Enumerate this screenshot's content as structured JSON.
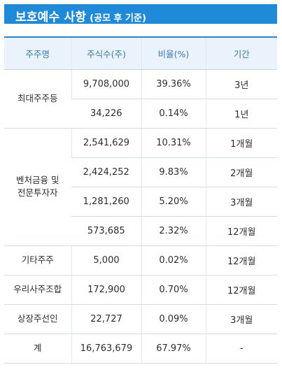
{
  "title": {
    "main": "보호예수 사항",
    "sub": "(공모 후 기준)"
  },
  "headers": [
    "주주명",
    "주식수(주)",
    "비율(%)",
    "기간"
  ],
  "groups": [
    {
      "name": "최대주주등",
      "rows": [
        {
          "shares": "9,708,000",
          "ratio": "39.36%",
          "period": "3년"
        },
        {
          "shares": "34,226",
          "ratio": "0.14%",
          "period": "1년"
        }
      ]
    },
    {
      "name_lines": [
        "벤처금융 및",
        "전문투자자"
      ],
      "rows": [
        {
          "shares": "2,541,629",
          "ratio": "10.31%",
          "period": "1개월"
        },
        {
          "shares": "2,424,252",
          "ratio": "9.83%",
          "period": "2개월"
        },
        {
          "shares": "1,281,260",
          "ratio": "5.20%",
          "period": "3개월"
        },
        {
          "shares": "573,685",
          "ratio": "2.32%",
          "period": "12개월"
        }
      ]
    },
    {
      "name": "기타주주",
      "rows": [
        {
          "shares": "5,000",
          "ratio": "0.02%",
          "period": "12개월"
        }
      ]
    },
    {
      "name": "우리사주조합",
      "rows": [
        {
          "shares": "172,900",
          "ratio": "0.70%",
          "period": "12개월"
        }
      ]
    },
    {
      "name": "상장주선인",
      "rows": [
        {
          "shares": "22,727",
          "ratio": "0.09%",
          "period": "3개월"
        }
      ]
    },
    {
      "name": "계",
      "rows": [
        {
          "shares": "16,763,679",
          "ratio": "67.97%",
          "period": "-"
        }
      ]
    }
  ]
}
